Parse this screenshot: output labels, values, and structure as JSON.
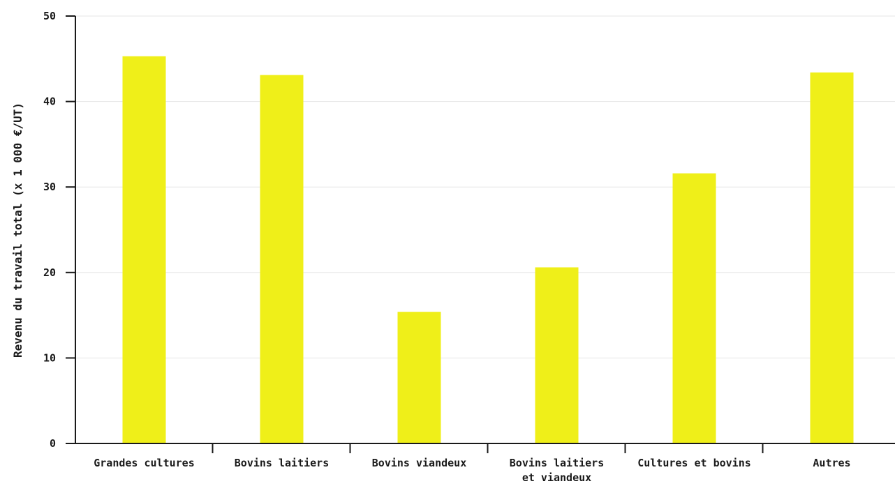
{
  "chart_data": {
    "type": "bar",
    "title": "",
    "xlabel": "",
    "ylabel": "Revenu du travail total (x 1 000 €/UT)",
    "categories": [
      "Grandes cultures",
      "Bovins laitiers",
      "Bovins viandeux",
      "Bovins laitiers et viandeux",
      "Cultures et bovins",
      "Autres"
    ],
    "values": [
      45.3,
      43.1,
      15.4,
      20.6,
      31.6,
      43.4
    ],
    "ylim": [
      0,
      50
    ],
    "yticks": [
      0,
      10,
      20,
      30,
      40,
      50
    ],
    "grid": true,
    "legend": "none",
    "bar_color": "#efef19"
  }
}
